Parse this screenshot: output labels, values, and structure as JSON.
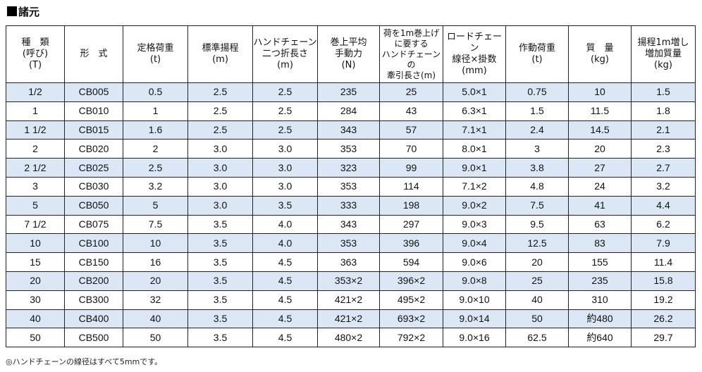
{
  "page_title": "諸元",
  "headers": [
    [
      "種　類",
      "(呼び)",
      "(T)"
    ],
    [
      "形　式"
    ],
    [
      "定格荷重",
      "(t)"
    ],
    [
      "標準揚程",
      "(m)"
    ],
    [
      "ハンドチェーン",
      "二つ折長さ",
      "(m)"
    ],
    [
      "巻上平均",
      "手動力",
      "(N)"
    ],
    [
      "荷を1m巻上げ",
      "に要する",
      "ハンドチェーンの",
      "牽引長さ(m)"
    ],
    [
      "ロードチェーン",
      "線径×掛数",
      "(mm)"
    ],
    [
      "作動荷重",
      "(t)"
    ],
    [
      "質　量",
      "(kg)"
    ],
    [
      "揚程1m増し",
      "増加質量",
      "(kg)"
    ]
  ],
  "rows": [
    [
      "1/2",
      "CB005",
      "0.5",
      "2.5",
      "2.5",
      "235",
      "25",
      "5.0×1",
      "0.75",
      "10",
      "1.5"
    ],
    [
      "1",
      "CB010",
      "1",
      "2.5",
      "2.5",
      "284",
      "43",
      "6.3×1",
      "1.5",
      "11.5",
      "1.8"
    ],
    [
      "1 1/2",
      "CB015",
      "1.6",
      "2.5",
      "2.5",
      "343",
      "57",
      "7.1×1",
      "2.4",
      "14.5",
      "2.1"
    ],
    [
      "2",
      "CB020",
      "2",
      "3.0",
      "3.0",
      "353",
      "70",
      "8.0×1",
      "3",
      "20",
      "2.3"
    ],
    [
      "2 1/2",
      "CB025",
      "2.5",
      "3.0",
      "3.0",
      "323",
      "99",
      "9.0×1",
      "3.8",
      "27",
      "2.7"
    ],
    [
      "3",
      "CB030",
      "3.2",
      "3.0",
      "3.0",
      "353",
      "114",
      "7.1×2",
      "4.8",
      "24",
      "3.2"
    ],
    [
      "5",
      "CB050",
      "5",
      "3.0",
      "3.5",
      "333",
      "198",
      "9.0×2",
      "7.5",
      "41",
      "4.4"
    ],
    [
      "7 1/2",
      "CB075",
      "7.5",
      "3.5",
      "4.0",
      "343",
      "297",
      "9.0×3",
      "9.5",
      "63",
      "6.2"
    ],
    [
      "10",
      "CB100",
      "10",
      "3.5",
      "4.0",
      "353",
      "396",
      "9.0×4",
      "12.5",
      "83",
      "7.9"
    ],
    [
      "15",
      "CB150",
      "16",
      "3.5",
      "4.5",
      "363",
      "594",
      "9.0×6",
      "20",
      "155",
      "11.4"
    ],
    [
      "20",
      "CB200",
      "20",
      "3.5",
      "4.5",
      "353×2",
      "396×2",
      "9.0×8",
      "25",
      "235",
      "15.8"
    ],
    [
      "30",
      "CB300",
      "32",
      "3.5",
      "4.5",
      "421×2",
      "495×2",
      "9.0×10",
      "40",
      "310",
      "19.2"
    ],
    [
      "40",
      "CB400",
      "40",
      "3.5",
      "4.5",
      "421×2",
      "693×2",
      "9.0×14",
      "50",
      "約480",
      "26.2"
    ],
    [
      "50",
      "CB500",
      "50",
      "3.5",
      "4.5",
      "480×2",
      "792×2",
      "9.0×16",
      "62.5",
      "約640",
      "29.7"
    ]
  ],
  "note": "◎ハンドチェーンの線径はすべて5mmです。"
}
